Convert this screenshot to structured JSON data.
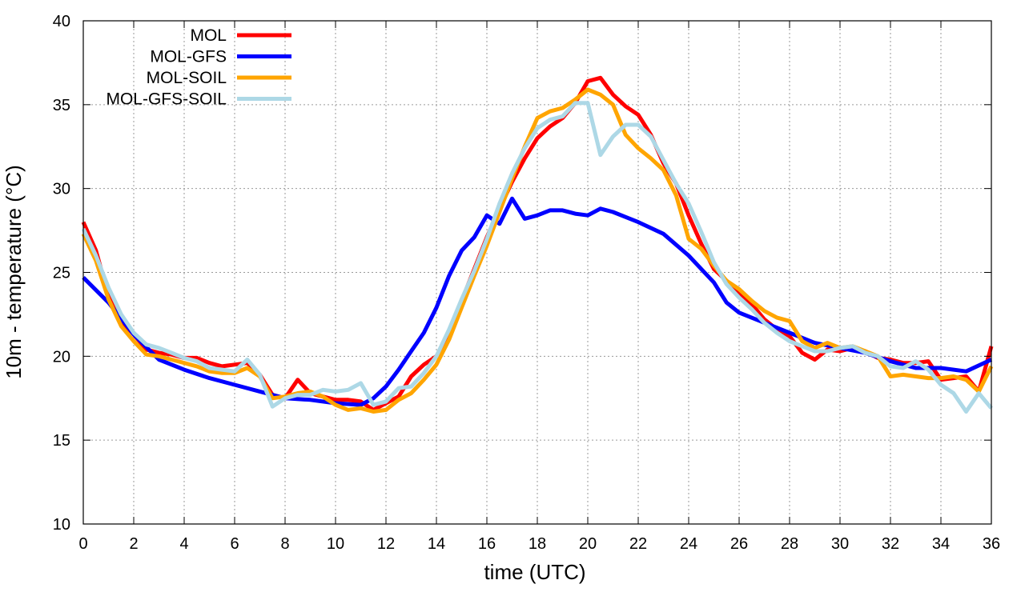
{
  "chart_data": {
    "type": "line",
    "title": "",
    "xlabel": "time (UTC)",
    "ylabel": "10m - temperature (°C)",
    "xlim": [
      0,
      36
    ],
    "ylim": [
      10,
      40
    ],
    "xticks": [
      0,
      2,
      4,
      6,
      8,
      10,
      12,
      14,
      16,
      18,
      20,
      22,
      24,
      26,
      28,
      30,
      32,
      34,
      36
    ],
    "yticks": [
      10,
      15,
      20,
      25,
      30,
      35,
      40
    ],
    "grid": true,
    "legend_position": "top-left",
    "series": [
      {
        "name": "MOL",
        "color": "#ff0000",
        "points": [
          [
            0,
            28
          ],
          [
            0.5,
            26.3
          ],
          [
            1,
            23.6
          ],
          [
            1.5,
            22.1
          ],
          [
            2,
            21.3
          ],
          [
            2.5,
            20.4
          ],
          [
            3,
            20.2
          ],
          [
            3.5,
            20.1
          ],
          [
            4,
            19.9
          ],
          [
            4.5,
            19.9
          ],
          [
            5,
            19.6
          ],
          [
            5.5,
            19.4
          ],
          [
            6,
            19.5
          ],
          [
            6.5,
            19.6
          ],
          [
            7,
            18.9
          ],
          [
            7.5,
            17.7
          ],
          [
            8,
            17.5
          ],
          [
            8.5,
            18.6
          ],
          [
            9,
            17.8
          ],
          [
            9.5,
            17.6
          ],
          [
            10,
            17.4
          ],
          [
            10.5,
            17.4
          ],
          [
            11,
            17.3
          ],
          [
            11.5,
            16.8
          ],
          [
            12,
            17.2
          ],
          [
            12.5,
            17.6
          ],
          [
            13,
            18.8
          ],
          [
            13.5,
            19.5
          ],
          [
            14,
            20
          ],
          [
            14.5,
            21.4
          ],
          [
            15,
            23.3
          ],
          [
            15.5,
            25.2
          ],
          [
            16,
            27.1
          ],
          [
            16.5,
            28.8
          ],
          [
            17,
            30.4
          ],
          [
            17.5,
            31.8
          ],
          [
            18,
            33
          ],
          [
            18.5,
            33.7
          ],
          [
            19,
            34.2
          ],
          [
            19.5,
            35.1
          ],
          [
            20,
            36.4
          ],
          [
            20.5,
            36.6
          ],
          [
            21,
            35.6
          ],
          [
            21.5,
            34.9
          ],
          [
            22,
            34.4
          ],
          [
            22.5,
            33.2
          ],
          [
            23,
            31.5
          ],
          [
            23.5,
            30.3
          ],
          [
            24,
            28.4
          ],
          [
            24.5,
            26.7
          ],
          [
            25,
            25.2
          ],
          [
            25.5,
            24.5
          ],
          [
            26,
            23.7
          ],
          [
            26.5,
            23.1
          ],
          [
            27,
            22.2
          ],
          [
            27.5,
            21.6
          ],
          [
            28,
            21.2
          ],
          [
            28.5,
            20.2
          ],
          [
            29,
            19.8
          ],
          [
            29.5,
            20.4
          ],
          [
            30,
            20.3
          ],
          [
            30.5,
            20.5
          ],
          [
            31,
            20.3
          ],
          [
            31.5,
            19.9
          ],
          [
            32,
            19.8
          ],
          [
            32.5,
            19.6
          ],
          [
            33,
            19.6
          ],
          [
            33.5,
            19.7
          ],
          [
            34,
            18.6
          ],
          [
            34.5,
            18.7
          ],
          [
            35,
            18.8
          ],
          [
            35.5,
            17.9
          ],
          [
            36,
            20.6
          ]
        ]
      },
      {
        "name": "MOL-GFS",
        "color": "#0000ff",
        "points": [
          [
            0,
            24.7
          ],
          [
            1,
            23.2
          ],
          [
            2,
            21.3
          ],
          [
            3,
            19.8
          ],
          [
            4,
            19.2
          ],
          [
            5,
            18.7
          ],
          [
            6,
            18.3
          ],
          [
            7,
            17.9
          ],
          [
            8,
            17.5
          ],
          [
            9,
            17.4
          ],
          [
            10,
            17.2
          ],
          [
            11,
            17.1
          ],
          [
            11.5,
            17.5
          ],
          [
            12,
            18.2
          ],
          [
            12.5,
            19.2
          ],
          [
            13,
            20.3
          ],
          [
            13.5,
            21.4
          ],
          [
            14,
            22.9
          ],
          [
            14.5,
            24.8
          ],
          [
            15,
            26.3
          ],
          [
            15.5,
            27.1
          ],
          [
            16,
            28.4
          ],
          [
            16.5,
            27.9
          ],
          [
            17,
            29.4
          ],
          [
            17.5,
            28.2
          ],
          [
            18,
            28.4
          ],
          [
            18.5,
            28.7
          ],
          [
            19,
            28.7
          ],
          [
            19.5,
            28.5
          ],
          [
            20,
            28.4
          ],
          [
            20.5,
            28.8
          ],
          [
            21,
            28.6
          ],
          [
            21.5,
            28.3
          ],
          [
            22,
            28
          ],
          [
            23,
            27.3
          ],
          [
            24,
            26
          ],
          [
            25,
            24.4
          ],
          [
            25.5,
            23.2
          ],
          [
            26,
            22.6
          ],
          [
            27,
            22
          ],
          [
            28,
            21.4
          ],
          [
            29,
            20.8
          ],
          [
            30,
            20.5
          ],
          [
            31,
            20.2
          ],
          [
            32,
            19.7
          ],
          [
            33,
            19.3
          ],
          [
            34,
            19.3
          ],
          [
            35,
            19.1
          ],
          [
            36,
            19.8
          ]
        ]
      },
      {
        "name": "MOL-SOIL",
        "color": "#ffa500",
        "points": [
          [
            0,
            27.3
          ],
          [
            0.5,
            25.7
          ],
          [
            1,
            23.4
          ],
          [
            1.5,
            21.8
          ],
          [
            2,
            20.9
          ],
          [
            2.5,
            20.1
          ],
          [
            3,
            20
          ],
          [
            3.5,
            19.8
          ],
          [
            4,
            19.6
          ],
          [
            4.5,
            19.4
          ],
          [
            5,
            19.1
          ],
          [
            5.5,
            19
          ],
          [
            6,
            19
          ],
          [
            6.5,
            19.3
          ],
          [
            7,
            18.8
          ],
          [
            7.5,
            17.5
          ],
          [
            8,
            17.6
          ],
          [
            8.5,
            17.8
          ],
          [
            9,
            17.9
          ],
          [
            9.5,
            17.6
          ],
          [
            10,
            17.1
          ],
          [
            10.5,
            16.8
          ],
          [
            11,
            16.9
          ],
          [
            11.5,
            16.7
          ],
          [
            12,
            16.8
          ],
          [
            12.5,
            17.4
          ],
          [
            13,
            17.8
          ],
          [
            13.5,
            18.6
          ],
          [
            14,
            19.5
          ],
          [
            14.5,
            21
          ],
          [
            15,
            22.9
          ],
          [
            15.5,
            24.8
          ],
          [
            16,
            26.6
          ],
          [
            16.5,
            28.6
          ],
          [
            17,
            30.6
          ],
          [
            17.5,
            32.5
          ],
          [
            18,
            34.2
          ],
          [
            18.5,
            34.6
          ],
          [
            19,
            34.8
          ],
          [
            19.5,
            35.3
          ],
          [
            20,
            35.9
          ],
          [
            20.5,
            35.6
          ],
          [
            21,
            35
          ],
          [
            21.5,
            33.2
          ],
          [
            22,
            32.4
          ],
          [
            22.5,
            31.8
          ],
          [
            23,
            31.1
          ],
          [
            23.5,
            29.6
          ],
          [
            24,
            27
          ],
          [
            24.5,
            26.4
          ],
          [
            25,
            25.4
          ],
          [
            25.5,
            24.5
          ],
          [
            26,
            24
          ],
          [
            26.5,
            23.3
          ],
          [
            27,
            22.7
          ],
          [
            27.5,
            22.3
          ],
          [
            28,
            22.1
          ],
          [
            28.5,
            20.9
          ],
          [
            29,
            20.5
          ],
          [
            29.5,
            20.8
          ],
          [
            30,
            20.5
          ],
          [
            30.5,
            20.6
          ],
          [
            31,
            20.3
          ],
          [
            31.5,
            20
          ],
          [
            32,
            18.8
          ],
          [
            32.5,
            18.9
          ],
          [
            33,
            18.8
          ],
          [
            33.5,
            18.7
          ],
          [
            34,
            18.7
          ],
          [
            34.5,
            18.8
          ],
          [
            35,
            18.6
          ],
          [
            35.5,
            17.9
          ],
          [
            36,
            19.4
          ]
        ]
      },
      {
        "name": "MOL-GFS-SOIL",
        "color": "#add8e6",
        "points": [
          [
            0,
            27.6
          ],
          [
            0.5,
            26
          ],
          [
            1,
            24.1
          ],
          [
            1.5,
            22.5
          ],
          [
            2,
            21.4
          ],
          [
            2.5,
            20.7
          ],
          [
            3,
            20.5
          ],
          [
            3.5,
            20.2
          ],
          [
            4,
            19.9
          ],
          [
            4.5,
            19.7
          ],
          [
            5,
            19.3
          ],
          [
            5.5,
            19.2
          ],
          [
            6,
            19.1
          ],
          [
            6.5,
            19.8
          ],
          [
            7,
            18.9
          ],
          [
            7.5,
            17
          ],
          [
            8,
            17.5
          ],
          [
            8.5,
            17.7
          ],
          [
            9,
            17.7
          ],
          [
            9.5,
            18
          ],
          [
            10,
            17.9
          ],
          [
            10.5,
            18
          ],
          [
            11,
            18.4
          ],
          [
            11.5,
            17.1
          ],
          [
            12,
            17.3
          ],
          [
            12.5,
            18.1
          ],
          [
            13,
            18.2
          ],
          [
            13.5,
            19
          ],
          [
            14,
            20
          ],
          [
            14.5,
            21.6
          ],
          [
            15,
            23.4
          ],
          [
            15.5,
            25.1
          ],
          [
            16,
            27
          ],
          [
            16.5,
            29.1
          ],
          [
            17,
            30.9
          ],
          [
            17.5,
            32.4
          ],
          [
            18,
            33.6
          ],
          [
            18.5,
            34.1
          ],
          [
            19,
            34.3
          ],
          [
            19.5,
            35.1
          ],
          [
            20,
            35.1
          ],
          [
            20.5,
            32
          ],
          [
            21,
            33.1
          ],
          [
            21.5,
            33.8
          ],
          [
            22,
            33.8
          ],
          [
            22.5,
            33.1
          ],
          [
            23,
            31.7
          ],
          [
            23.5,
            30.3
          ],
          [
            24,
            29.1
          ],
          [
            24.5,
            27.4
          ],
          [
            25,
            25.6
          ],
          [
            25.5,
            24.3
          ],
          [
            26,
            23.5
          ],
          [
            26.5,
            22.8
          ],
          [
            27,
            22
          ],
          [
            27.5,
            21.4
          ],
          [
            28,
            20.9
          ],
          [
            28.5,
            20.6
          ],
          [
            29,
            20.3
          ],
          [
            29.5,
            20.3
          ],
          [
            30,
            20.5
          ],
          [
            30.5,
            20.6
          ],
          [
            31,
            20.2
          ],
          [
            31.5,
            20
          ],
          [
            32,
            19.4
          ],
          [
            32.5,
            19.3
          ],
          [
            33,
            19.7
          ],
          [
            33.5,
            19.2
          ],
          [
            34,
            18.3
          ],
          [
            34.5,
            17.8
          ],
          [
            35,
            16.7
          ],
          [
            35.5,
            17.8
          ],
          [
            36,
            16.9
          ]
        ]
      }
    ]
  }
}
